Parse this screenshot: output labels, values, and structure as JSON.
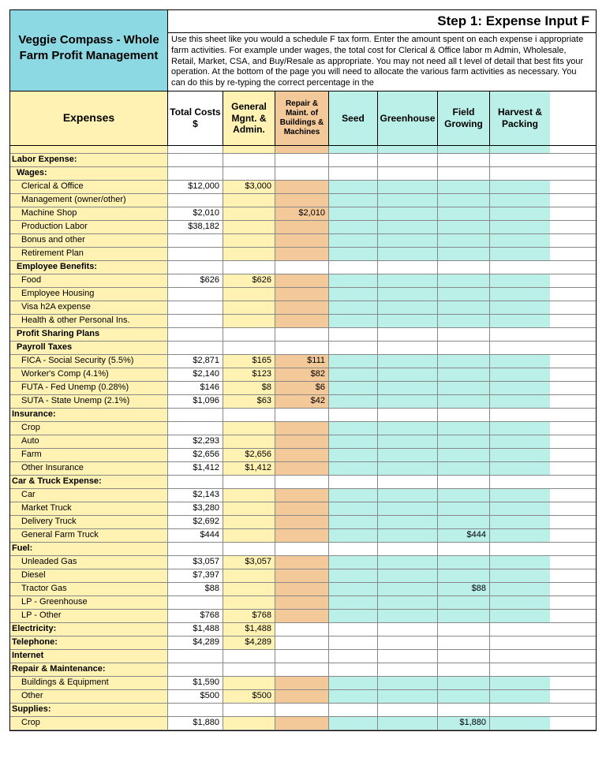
{
  "title": "Veggie Compass - Whole Farm Profit Management",
  "step_title": "Step 1: Expense Input F",
  "instructions": "Use this sheet like you would a schedule F tax form. Enter the amount spent on each expense i appropriate farm activities. For example under wages, the total cost for Clerical & Office labor m Admin, Wholesale, Retail, Market, CSA, and Buy/Resale as appropriate. You may not need all t level of detail that best fits your operation. At the bottom of the page you will need to allocate the various farm activities as necessary. You can do this by re-typing the correct percentage in the",
  "headers": {
    "expenses": "Expenses",
    "total": "Total Costs $",
    "general": "General Mgnt. & Admin.",
    "repair": "Repair & Maint. of Buildings & Machines",
    "seed": "Seed",
    "greenhouse": "Greenhouse",
    "field": "Field Growing",
    "harvest": "Harvest & Packing"
  },
  "colors": {
    "title_bg": "#8dd9e3",
    "yellow": "#fff2b3",
    "orange": "#f4c99a",
    "teal": "#baf0e8",
    "white": "#ffffff"
  },
  "rows": [
    {
      "type": "section",
      "label": "Labor Expense:"
    },
    {
      "type": "subsection",
      "label": "Wages:"
    },
    {
      "type": "item",
      "label": "Clerical & Office",
      "total": "$12,000",
      "gen": "$3,000"
    },
    {
      "type": "item",
      "label": "Management (owner/other)"
    },
    {
      "type": "item",
      "label": "Machine Shop",
      "total": "$2,010",
      "rep": "$2,010"
    },
    {
      "type": "item",
      "label": "Production Labor",
      "total": "$38,182"
    },
    {
      "type": "item",
      "label": "Bonus and other"
    },
    {
      "type": "item",
      "label": "Retirement Plan"
    },
    {
      "type": "subsection",
      "label": "Employee Benefits:"
    },
    {
      "type": "item",
      "label": "Food",
      "total": "$626",
      "gen": "$626"
    },
    {
      "type": "item",
      "label": "Employee Housing"
    },
    {
      "type": "item",
      "label": "Visa h2A expense"
    },
    {
      "type": "item",
      "label": "Health & other Personal Ins."
    },
    {
      "type": "subsection",
      "label": "Profit Sharing Plans"
    },
    {
      "type": "subsection",
      "label": "Payroll Taxes"
    },
    {
      "type": "item",
      "label": "FICA - Social Security (5.5%)",
      "total": "$2,871",
      "gen": "$165",
      "rep": "$111"
    },
    {
      "type": "item",
      "label": "Worker's Comp  (4.1%)",
      "total": "$2,140",
      "gen": "$123",
      "rep": "$82"
    },
    {
      "type": "item",
      "label": "FUTA - Fed Unemp (0.28%)",
      "total": "$146",
      "gen": "$8",
      "rep": "$6"
    },
    {
      "type": "item",
      "label": "SUTA - State Unemp (2.1%)",
      "total": "$1,096",
      "gen": "$63",
      "rep": "$42"
    },
    {
      "type": "section",
      "label": "Insurance:"
    },
    {
      "type": "item",
      "label": "Crop"
    },
    {
      "type": "item",
      "label": "Auto",
      "total": "$2,293"
    },
    {
      "type": "item",
      "label": "Farm",
      "total": "$2,656",
      "gen": "$2,656"
    },
    {
      "type": "item",
      "label": "Other Insurance",
      "total": "$1,412",
      "gen": "$1,412"
    },
    {
      "type": "section",
      "label": "Car & Truck Expense:"
    },
    {
      "type": "item",
      "label": "Car",
      "total": "$2,143"
    },
    {
      "type": "item",
      "label": "Market Truck",
      "total": "$3,280"
    },
    {
      "type": "item",
      "label": "Delivery Truck",
      "total": "$2,692"
    },
    {
      "type": "item",
      "label": "General Farm Truck",
      "total": "$444",
      "fld": "$444"
    },
    {
      "type": "section",
      "label": "Fuel:"
    },
    {
      "type": "item",
      "label": "Unleaded Gas",
      "total": "$3,057",
      "gen": "$3,057"
    },
    {
      "type": "item",
      "label": "Diesel",
      "total": "$7,397"
    },
    {
      "type": "item",
      "label": "Tractor Gas",
      "total": "$88",
      "fld": "$88"
    },
    {
      "type": "item",
      "label": "LP - Greenhouse"
    },
    {
      "type": "item",
      "label": "LP - Other",
      "total": "$768",
      "gen": "$768"
    },
    {
      "type": "section",
      "label": "Electricity:",
      "total": "$1,488",
      "gen": "$1,488"
    },
    {
      "type": "section",
      "label": "Telephone:",
      "total": "$4,289",
      "gen": "$4,289"
    },
    {
      "type": "section",
      "label": "Internet"
    },
    {
      "type": "section",
      "label": "Repair & Maintenance:"
    },
    {
      "type": "item",
      "label": "Buildings & Equipment",
      "total": "$1,590"
    },
    {
      "type": "item",
      "label": "Other",
      "total": "$500",
      "gen": "$500"
    },
    {
      "type": "section",
      "label": "Supplies:"
    },
    {
      "type": "item",
      "label": "Crop",
      "total": "$1,880",
      "fld": "$1,880"
    }
  ]
}
